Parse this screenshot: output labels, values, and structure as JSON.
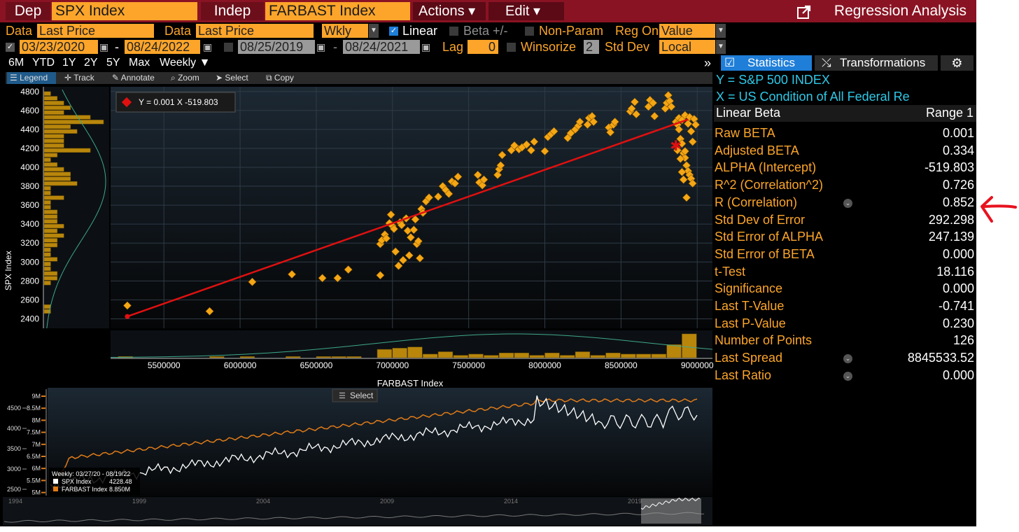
{
  "topbar": {
    "dep_label": "Dep",
    "dep_value": "SPX Index",
    "indep_label": "Indep",
    "indep_value": "FARBAST Index",
    "actions": "Actions ▾",
    "edit": "Edit ▾",
    "title": "Regression Analysis"
  },
  "options": {
    "data1_label": "Data",
    "data1_value": "Last Price",
    "data2_label": "Data",
    "data2_value": "Last Price",
    "freq": "Wkly",
    "linear": "Linear",
    "beta": "Beta +/-",
    "nonparam": "Non-Param",
    "regon_label": "Reg On",
    "regon_value": "Value",
    "date_start": "03/23/2020",
    "date_end": "08/24/2022",
    "dash": "-",
    "date2_start": "08/25/2019",
    "date2_end": "08/24/2021",
    "lag_label": "Lag",
    "lag_value": "0",
    "winsorize": "Winsorize",
    "winsorize_value": "2",
    "stddev_label": "Std Dev",
    "stddev_value": "Local"
  },
  "periods": [
    "6M",
    "YTD",
    "1Y",
    "2Y",
    "5Y",
    "Max"
  ],
  "period_freq": "Weekly ▼",
  "tools": [
    "Legend",
    "Track",
    "Annotate",
    "Zoom",
    "Select",
    "Copy"
  ],
  "tabs": {
    "statistics": "Statistics",
    "transformations": "Transformations"
  },
  "panel": {
    "y_line": "Y = S&P 500 INDEX",
    "x_line": "X = US Condition of All Federal Re",
    "header_left": "Linear Beta",
    "header_right": "Range 1"
  },
  "stats": [
    {
      "label": "Raw BETA",
      "value": "0.001"
    },
    {
      "label": "Adjusted BETA",
      "value": "0.334"
    },
    {
      "label": "ALPHA (Intercept)",
      "value": "-519.803"
    },
    {
      "label": "R^2 (Correlation^2)",
      "value": "0.726"
    },
    {
      "label": "R (Correlation)",
      "value": "0.852",
      "icon": true
    },
    {
      "label": "Std Dev of Error",
      "value": "292.298"
    },
    {
      "label": "Std Error of ALPHA",
      "value": "247.139"
    },
    {
      "label": "Std Error of BETA",
      "value": "0.000"
    },
    {
      "label": "t-Test",
      "value": "18.116"
    },
    {
      "label": "Significance",
      "value": "0.000"
    },
    {
      "label": "Last T-Value",
      "value": "-0.741"
    },
    {
      "label": "Last P-Value",
      "value": "0.230"
    },
    {
      "label": "Number of Points",
      "value": "126"
    },
    {
      "label": "Last Spread",
      "value": "8845533.52",
      "icon": true
    },
    {
      "label": "Last Ratio",
      "value": "0.000",
      "icon": true
    }
  ],
  "colors": {
    "accent": "#fca52a",
    "bar": "#8a1323",
    "line": "#e01010",
    "cyan": "#2ec9e8",
    "annotation": "#e01010"
  },
  "chart_data": [
    {
      "type": "scatter",
      "xlabel": "FARBAST Index",
      "ylabel": "SPX Index",
      "legend_text": "Y = 0.001 X  -519.803",
      "xlim": [
        5150000,
        9100000
      ],
      "ylim": [
        2300,
        4850
      ],
      "x_ticks": [
        5500000,
        6000000,
        6500000,
        7000000,
        7500000,
        8000000,
        8500000,
        9000000
      ],
      "x_tick_labels": [
        "5500000",
        "6000000",
        "6500000",
        "7000000",
        "7500000",
        "8000000",
        "8500000",
        "9000000"
      ],
      "y_ticks": [
        2400,
        2600,
        2800,
        3000,
        3200,
        3400,
        3600,
        3800,
        4000,
        4200,
        4400,
        4600,
        4800
      ],
      "regression": {
        "slope": 0.001,
        "intercept": -519.803,
        "x_start": 5260000,
        "y_start": 2425,
        "x_end": 8940000,
        "y_end": 4505
      },
      "last_point": [
        8860000,
        4230
      ],
      "points": [
        [
          5260000,
          2540
        ],
        [
          5800000,
          2480
        ],
        [
          6080000,
          2790
        ],
        [
          6340000,
          2870
        ],
        [
          6540000,
          2830
        ],
        [
          6640000,
          2830
        ],
        [
          6710000,
          2920
        ],
        [
          6920000,
          2860
        ],
        [
          6920000,
          3190
        ],
        [
          6930000,
          3230
        ],
        [
          6950000,
          3290
        ],
        [
          6960000,
          3250
        ],
        [
          6980000,
          3410
        ],
        [
          6990000,
          3500
        ],
        [
          7000000,
          3380
        ],
        [
          7010000,
          3350
        ],
        [
          7020000,
          3110
        ],
        [
          7040000,
          2960
        ],
        [
          7050000,
          3420
        ],
        [
          7060000,
          3390
        ],
        [
          7070000,
          3020
        ],
        [
          7090000,
          3460
        ],
        [
          7100000,
          3330
        ],
        [
          7110000,
          3070
        ],
        [
          7120000,
          3260
        ],
        [
          7140000,
          3340
        ],
        [
          7150000,
          3450
        ],
        [
          7160000,
          3190
        ],
        [
          7170000,
          3220
        ],
        [
          7180000,
          3040
        ],
        [
          7190000,
          3560
        ],
        [
          7200000,
          3520
        ],
        [
          7220000,
          3640
        ],
        [
          7240000,
          3680
        ],
        [
          7300000,
          3690
        ],
        [
          7330000,
          3800
        ],
        [
          7350000,
          3760
        ],
        [
          7370000,
          3720
        ],
        [
          7390000,
          3850
        ],
        [
          7410000,
          3830
        ],
        [
          7430000,
          3900
        ],
        [
          7560000,
          3920
        ],
        [
          7570000,
          3840
        ],
        [
          7590000,
          3810
        ],
        [
          7600000,
          3870
        ],
        [
          7690000,
          3920
        ],
        [
          7700000,
          3980
        ],
        [
          7710000,
          4020
        ],
        [
          7720000,
          4130
        ],
        [
          7780000,
          4180
        ],
        [
          7800000,
          4230
        ],
        [
          7830000,
          4190
        ],
        [
          7850000,
          4210
        ],
        [
          7880000,
          4240
        ],
        [
          7910000,
          4180
        ],
        [
          7930000,
          4270
        ],
        [
          8000000,
          4170
        ],
        [
          8020000,
          4320
        ],
        [
          8040000,
          4350
        ],
        [
          8060000,
          4380
        ],
        [
          8150000,
          4310
        ],
        [
          8170000,
          4360
        ],
        [
          8200000,
          4400
        ],
        [
          8220000,
          4440
        ],
        [
          8230000,
          4480
        ],
        [
          8280000,
          4450
        ],
        [
          8290000,
          4520
        ],
        [
          8310000,
          4540
        ],
        [
          8320000,
          4480
        ],
        [
          8420000,
          4420
        ],
        [
          8430000,
          4370
        ],
        [
          8450000,
          4450
        ],
        [
          8460000,
          4480
        ],
        [
          8560000,
          4590
        ],
        [
          8570000,
          4620
        ],
        [
          8590000,
          4690
        ],
        [
          8600000,
          4560
        ],
        [
          8680000,
          4640
        ],
        [
          8690000,
          4710
        ],
        [
          8710000,
          4680
        ],
        [
          8720000,
          4540
        ],
        [
          8790000,
          4620
        ],
        [
          8800000,
          4680
        ],
        [
          8810000,
          4760
        ],
        [
          8820000,
          4700
        ],
        [
          8830000,
          4640
        ],
        [
          8860000,
          4480
        ],
        [
          8870000,
          4450
        ],
        [
          8880000,
          4400
        ],
        [
          8890000,
          4300
        ],
        [
          8900000,
          4250
        ],
        [
          8910000,
          4150
        ],
        [
          8920000,
          4100
        ],
        [
          8930000,
          4020
        ],
        [
          8940000,
          3960
        ],
        [
          8950000,
          3920
        ],
        [
          8960000,
          3880
        ],
        [
          8970000,
          3830
        ],
        [
          8900000,
          3950
        ],
        [
          8910000,
          3870
        ],
        [
          8920000,
          4170
        ],
        [
          8880000,
          4520
        ],
        [
          8900000,
          4500
        ],
        [
          8920000,
          4550
        ],
        [
          8940000,
          4460
        ],
        [
          8950000,
          4530
        ],
        [
          8960000,
          4380
        ],
        [
          8970000,
          4270
        ],
        [
          8980000,
          4510
        ],
        [
          8990000,
          4450
        ],
        [
          8930000,
          3680
        ],
        [
          8870000,
          4180
        ],
        [
          8890000,
          4090
        ]
      ]
    },
    {
      "type": "line",
      "legend_title": "Weekly: 03/27/20 - 08/19/22",
      "series": [
        {
          "name": "SPX Index",
          "last": "4228.48"
        },
        {
          "name": "FARBAST Index",
          "last": "8.850M"
        }
      ],
      "left_ticks": [
        "4500",
        "4000",
        "3500",
        "3000",
        "2500"
      ],
      "right_ticks": [
        "9M",
        "8.5M",
        "8M",
        "7.5M",
        "7M",
        "6.5M",
        "6M",
        "5.5M",
        "5M"
      ],
      "years": [
        "1994",
        "1999",
        "2004",
        "2009",
        "2014",
        "2019"
      ],
      "select_label": "Select"
    }
  ]
}
